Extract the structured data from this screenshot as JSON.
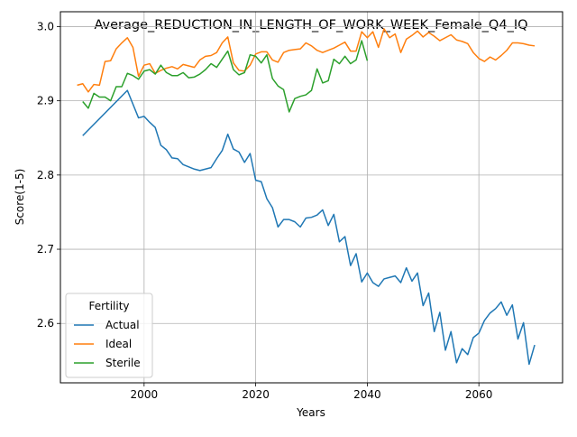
{
  "chart_data": {
    "type": "line",
    "title": "Average_REDUCTION_IN_LENGTH_OF_WORK_WEEK_Female_Q4_IQ",
    "xlabel": "Years",
    "ylabel": "Score(1-5)",
    "xlim": [
      1985,
      2075
    ],
    "ylim": [
      2.52,
      3.02
    ],
    "xticks": [
      2000,
      2020,
      2040,
      2060
    ],
    "yticks": [
      2.6,
      2.7,
      2.8,
      2.9,
      3.0
    ],
    "ytick_labels": [
      "2.6",
      "2.7",
      "2.8",
      "2.9",
      "3.0"
    ],
    "grid": true,
    "legend": {
      "title": "Fertility",
      "placement": "lower-left"
    },
    "x_start": 1989,
    "series": [
      {
        "name": "Actual",
        "color": "#1f77b4",
        "x": [
          1989,
          1997,
          1999,
          2000,
          2001,
          2002,
          2003,
          2004,
          2005,
          2006,
          2007,
          2008,
          2009,
          2010,
          2011,
          2012,
          2013,
          2014,
          2015,
          2016,
          2017,
          2018,
          2019,
          2020,
          2021,
          2022,
          2023,
          2024,
          2025,
          2026,
          2027,
          2028,
          2029,
          2030,
          2031,
          2032,
          2033,
          2034,
          2035,
          2036,
          2037,
          2038,
          2039,
          2040,
          2041,
          2042,
          2043,
          2044,
          2045,
          2046,
          2047,
          2048,
          2049,
          2050,
          2051,
          2052,
          2053,
          2054,
          2055,
          2056,
          2057,
          2058,
          2059,
          2060,
          2061,
          2062,
          2063,
          2064,
          2065,
          2066,
          2067,
          2068,
          2069,
          2070
        ],
        "values": [
          2.853,
          2.914,
          2.877,
          2.879,
          2.871,
          2.864,
          2.84,
          2.834,
          2.823,
          2.822,
          2.814,
          2.811,
          2.808,
          2.806,
          2.808,
          2.81,
          2.822,
          2.833,
          2.855,
          2.835,
          2.831,
          2.817,
          2.829,
          2.793,
          2.791,
          2.768,
          2.756,
          2.73,
          2.74,
          2.74,
          2.737,
          2.73,
          2.742,
          2.743,
          2.746,
          2.753,
          2.732,
          2.747,
          2.71,
          2.717,
          2.678,
          2.694,
          2.656,
          2.668,
          2.655,
          2.65,
          2.66,
          2.662,
          2.664,
          2.655,
          2.675,
          2.657,
          2.668,
          2.624,
          2.641,
          2.589,
          2.615,
          2.564,
          2.589,
          2.547,
          2.566,
          2.558,
          2.581,
          2.587,
          2.604,
          2.614,
          2.62,
          2.629,
          2.611,
          2.625,
          2.579,
          2.601,
          2.545,
          2.571
        ]
      },
      {
        "name": "Ideal",
        "color": "#ff7f0e",
        "x": [
          1988,
          1989,
          1990,
          1991,
          1992,
          1993,
          1994,
          1995,
          1996,
          1997,
          1998,
          1999,
          2000,
          2001,
          2002,
          2003,
          2004,
          2005,
          2006,
          2007,
          2008,
          2009,
          2010,
          2011,
          2012,
          2013,
          2014,
          2015,
          2016,
          2017,
          2018,
          2019,
          2020,
          2021,
          2022,
          2023,
          2024,
          2025,
          2026,
          2027,
          2028,
          2029,
          2030,
          2031,
          2032,
          2033,
          2034,
          2035,
          2036,
          2037,
          2038,
          2039,
          2040,
          2041,
          2042,
          2043,
          2044,
          2045,
          2046,
          2047,
          2048,
          2049,
          2050,
          2051,
          2052,
          2053,
          2054,
          2055,
          2056,
          2057,
          2058,
          2059,
          2060,
          2061,
          2062,
          2063,
          2064,
          2065,
          2066,
          2067,
          2068,
          2069,
          2070
        ],
        "values": [
          2.921,
          2.923,
          2.912,
          2.922,
          2.921,
          2.953,
          2.954,
          2.97,
          2.978,
          2.985,
          2.972,
          2.933,
          2.948,
          2.95,
          2.937,
          2.941,
          2.944,
          2.946,
          2.943,
          2.949,
          2.947,
          2.945,
          2.955,
          2.96,
          2.961,
          2.965,
          2.978,
          2.986,
          2.951,
          2.941,
          2.94,
          2.948,
          2.963,
          2.966,
          2.966,
          2.955,
          2.952,
          2.965,
          2.968,
          2.969,
          2.97,
          2.978,
          2.974,
          2.968,
          2.965,
          2.968,
          2.971,
          2.975,
          2.979,
          2.967,
          2.967,
          2.993,
          2.985,
          2.993,
          2.972,
          2.997,
          2.985,
          2.99,
          2.965,
          2.983,
          2.988,
          2.994,
          2.986,
          2.992,
          2.987,
          2.981,
          2.985,
          2.989,
          2.982,
          2.98,
          2.977,
          2.965,
          2.957,
          2.953,
          2.959,
          2.955,
          2.961,
          2.968,
          2.978,
          2.978,
          2.977,
          2.975,
          2.974
        ]
      },
      {
        "name": "Sterile",
        "color": "#2ca02c",
        "x": [
          1989,
          1990,
          1991,
          1992,
          1993,
          1994,
          1995,
          1996,
          1997,
          1998,
          1999,
          2000,
          2001,
          2002,
          2003,
          2004,
          2005,
          2006,
          2007,
          2008,
          2009,
          2010,
          2011,
          2012,
          2013,
          2014,
          2015,
          2016,
          2017,
          2018,
          2019,
          2020,
          2021,
          2022,
          2023,
          2024,
          2025,
          2026,
          2027,
          2028,
          2029,
          2030,
          2031,
          2032,
          2033,
          2034,
          2035,
          2036,
          2037,
          2038,
          2039,
          2040
        ],
        "values": [
          2.899,
          2.89,
          2.91,
          2.905,
          2.905,
          2.9,
          2.919,
          2.919,
          2.937,
          2.934,
          2.929,
          2.94,
          2.942,
          2.936,
          2.948,
          2.938,
          2.934,
          2.934,
          2.938,
          2.931,
          2.932,
          2.936,
          2.942,
          2.95,
          2.945,
          2.956,
          2.967,
          2.942,
          2.935,
          2.938,
          2.962,
          2.96,
          2.951,
          2.962,
          2.93,
          2.92,
          2.915,
          2.885,
          2.903,
          2.906,
          2.908,
          2.914,
          2.943,
          2.924,
          2.927,
          2.956,
          2.95,
          2.96,
          2.95,
          2.955,
          2.981,
          2.954
        ]
      }
    ]
  }
}
